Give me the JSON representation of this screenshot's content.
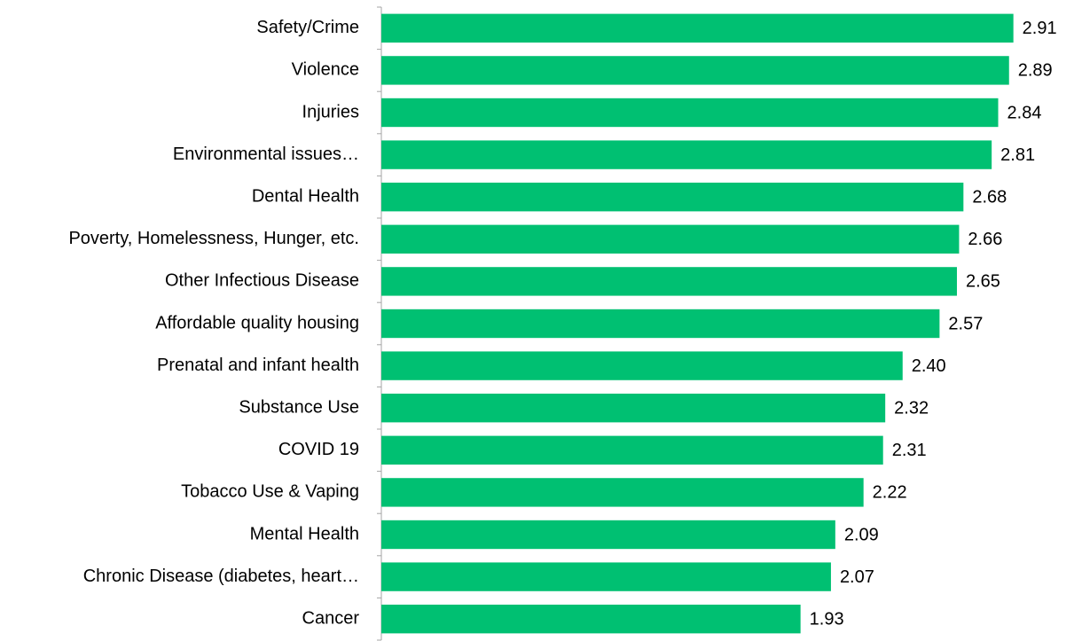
{
  "chart_data": {
    "type": "barh",
    "categories": [
      "Safety/Crime",
      "Violence",
      "Injuries",
      "Environmental issues…",
      "Dental Health",
      "Poverty, Homelessness, Hunger, etc.",
      "Other Infectious Disease",
      "Affordable quality housing",
      "Prenatal and infant health",
      "Substance Use",
      "COVID 19",
      "Tobacco Use & Vaping",
      "Mental Health",
      "Chronic Disease (diabetes, heart…",
      "Cancer"
    ],
    "values": [
      2.91,
      2.89,
      2.84,
      2.81,
      2.68,
      2.66,
      2.65,
      2.57,
      2.4,
      2.32,
      2.31,
      2.22,
      2.09,
      2.07,
      1.93
    ],
    "value_labels": [
      "2.91",
      "2.89",
      "2.84",
      "2.81",
      "2.68",
      "2.66",
      "2.65",
      "2.57",
      "2.40",
      "2.32",
      "2.31",
      "2.22",
      "2.09",
      "2.07",
      "1.93"
    ],
    "color": "#00c072",
    "xlim": [
      0,
      3
    ]
  }
}
